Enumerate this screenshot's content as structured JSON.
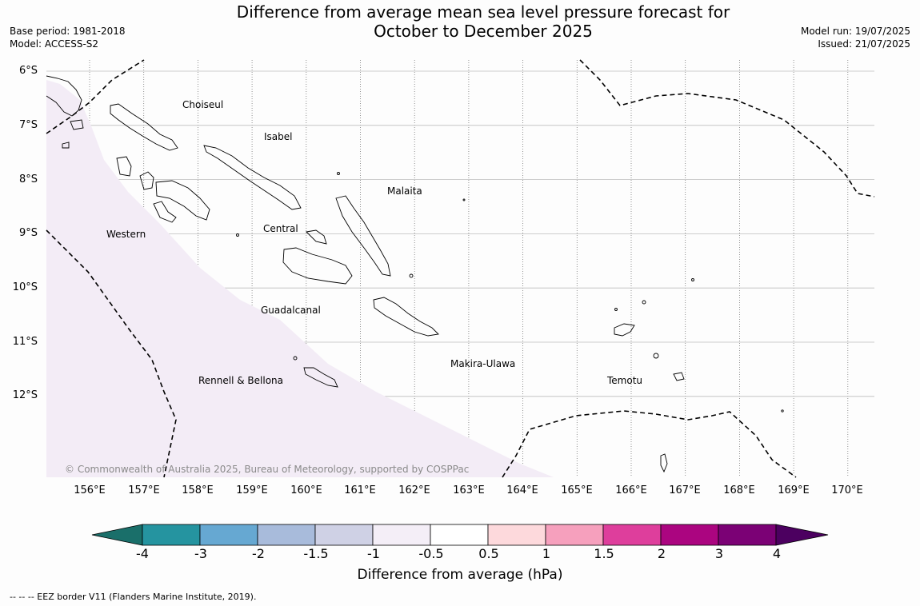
{
  "title": {
    "line1": "Difference from average mean sea level pressure forecast for",
    "line2": "October to December 2025"
  },
  "meta_left": {
    "base_period": "Base period: 1981-2018",
    "model": "Model: ACCESS-S2"
  },
  "meta_right": {
    "model_run": "Model run: 19/07/2025",
    "issued": "Issued: 21/07/2025"
  },
  "latitudes": [
    "6°S",
    "7°S",
    "8°S",
    "9°S",
    "10°S",
    "11°S",
    "12°S"
  ],
  "longitudes": [
    "156°E",
    "157°E",
    "158°E",
    "159°E",
    "160°E",
    "161°E",
    "162°E",
    "163°E",
    "164°E",
    "165°E",
    "166°E",
    "167°E",
    "168°E",
    "169°E",
    "170°E"
  ],
  "regions": [
    "Choiseul",
    "Isabel",
    "Malaita",
    "Western",
    "Central",
    "Guadalcanal",
    "Makira-Ulawa",
    "Rennell & Bellona",
    "Temotu"
  ],
  "copyright": "© Commonwealth of Australia 2025, Bureau of Meteorology, supported by COSPPac",
  "colorbar": {
    "title": "Difference from average (hPa)",
    "ticks": [
      "-4",
      "-3",
      "-2",
      "-1.5",
      "-1",
      "-0.5",
      "0.5",
      "1",
      "1.5",
      "2",
      "3",
      "4"
    ],
    "colors": [
      "#1a6f6a",
      "#2594a0",
      "#66a8d2",
      "#a8bbdb",
      "#cfd1e5",
      "#f4eef7",
      "#ffffff",
      "#fdd9dc",
      "#f6a0bd",
      "#de3e9c",
      "#ab0580",
      "#7b0175",
      "#4c0060"
    ]
  },
  "footnote": "--  --  -- EEZ border V11 (Flanders Marine Institute, 2019)."
}
